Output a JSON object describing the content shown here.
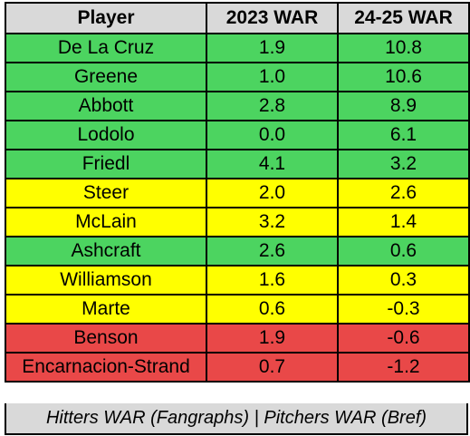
{
  "colors": {
    "header": "#d9d9d9",
    "green": "#4cd460",
    "yellow": "#ffff00",
    "red": "#e94848",
    "border": "#000000",
    "footnote": "#d9d9d9"
  },
  "table": {
    "headers": [
      "Player",
      "2023 WAR",
      "24-25 WAR"
    ],
    "rows": [
      {
        "player": "De La Cruz",
        "war_2023": "1.9",
        "war_2425": "10.8",
        "tier": "green"
      },
      {
        "player": "Greene",
        "war_2023": "1.0",
        "war_2425": "10.6",
        "tier": "green"
      },
      {
        "player": "Abbott",
        "war_2023": "2.8",
        "war_2425": "8.9",
        "tier": "green"
      },
      {
        "player": "Lodolo",
        "war_2023": "0.0",
        "war_2425": "6.1",
        "tier": "green"
      },
      {
        "player": "Friedl",
        "war_2023": "4.1",
        "war_2425": "3.2",
        "tier": "green"
      },
      {
        "player": "Steer",
        "war_2023": "2.0",
        "war_2425": "2.6",
        "tier": "yellow"
      },
      {
        "player": "McLain",
        "war_2023": "3.2",
        "war_2425": "1.4",
        "tier": "yellow"
      },
      {
        "player": "Ashcraft",
        "war_2023": "2.6",
        "war_2425": "0.6",
        "tier": "green"
      },
      {
        "player": "Williamson",
        "war_2023": "1.6",
        "war_2425": "0.3",
        "tier": "yellow"
      },
      {
        "player": "Marte",
        "war_2023": "0.6",
        "war_2425": "-0.3",
        "tier": "yellow"
      },
      {
        "player": "Benson",
        "war_2023": "1.9",
        "war_2425": "-0.6",
        "tier": "red"
      },
      {
        "player": "Encarnacion-Strand",
        "war_2023": "0.7",
        "war_2425": "-1.2",
        "tier": "red"
      }
    ],
    "footnote": "Hitters WAR (Fangraphs) | Pitchers WAR (Bref)"
  }
}
